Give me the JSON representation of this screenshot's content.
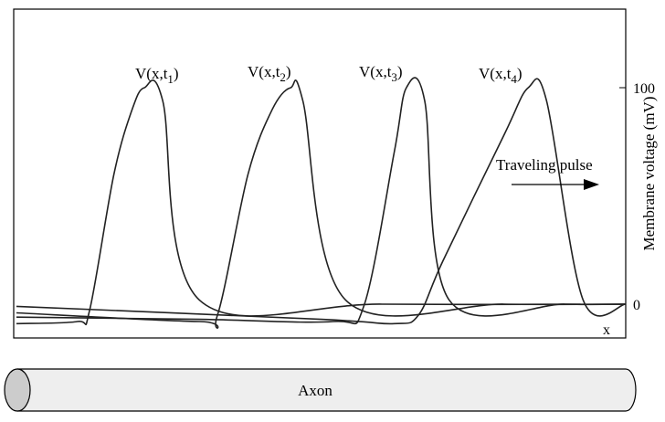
{
  "chart_data": {
    "type": "line",
    "xlabel": "x",
    "ylabel": "Membrane voltage (mV)",
    "ylim": [
      -10,
      100
    ],
    "y_ticks": [
      "100",
      "0"
    ],
    "grid": false,
    "series": [
      {
        "name_main": "V(x,t",
        "name_sub": "1",
        "name_close": ")",
        "x": [
          0.0,
          0.1,
          0.12,
          0.16,
          0.19,
          0.21,
          0.24,
          0.3,
          0.6,
          1.0
        ],
        "values": [
          -9,
          -8,
          -3,
          60,
          90,
          100,
          94,
          2,
          0,
          0
        ]
      },
      {
        "name_main": "V(x,t",
        "name_sub": "2",
        "name_close": ")",
        "x": [
          0.0,
          0.3,
          0.33,
          0.38,
          0.42,
          0.45,
          0.47,
          0.54,
          0.8,
          1.0
        ],
        "values": [
          -4,
          -8,
          -5,
          60,
          90,
          100,
          94,
          2,
          0,
          0
        ]
      },
      {
        "name_main": "V(x,t",
        "name_sub": "3",
        "name_close": ")",
        "x": [
          0.0,
          0.3,
          0.52,
          0.57,
          0.62,
          0.64,
          0.67,
          0.71,
          0.9,
          1.0
        ],
        "values": [
          -6,
          -7,
          -8,
          -1,
          70,
          100,
          94,
          2,
          0,
          0
        ]
      },
      {
        "name_main": "V(x,t",
        "name_sub": "4",
        "name_close": ")",
        "x": [
          0.0,
          0.5,
          0.62,
          0.66,
          0.7,
          0.8,
          0.84,
          0.87,
          0.93,
          1.0
        ],
        "values": [
          -1,
          -7,
          -9,
          -5,
          20,
          78,
          100,
          94,
          2,
          0
        ]
      }
    ]
  },
  "annotation": {
    "text": "Traveling pulse"
  },
  "axon": {
    "label": "Axon"
  },
  "colors": {
    "line": "#222222",
    "axon_fill": "#eeeeee",
    "axon_end": "#cccccc"
  }
}
